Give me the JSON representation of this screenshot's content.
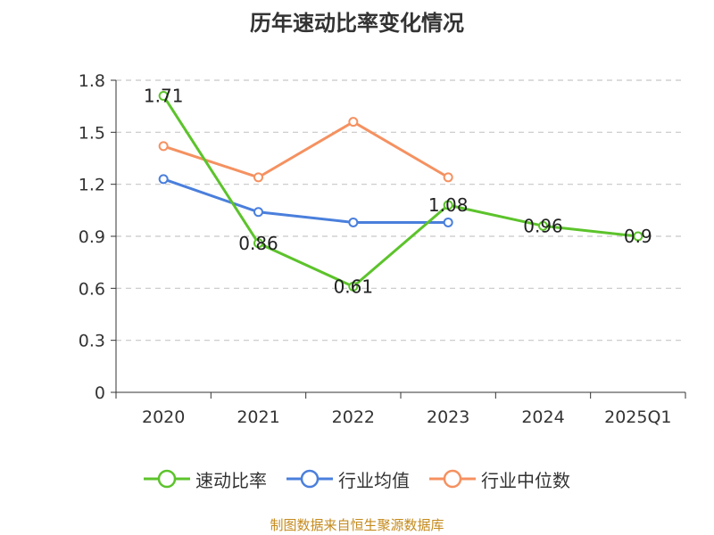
{
  "chart_data": {
    "type": "line",
    "title": "历年速动比率变化情况",
    "categories": [
      "2020",
      "2021",
      "2022",
      "2023",
      "2024",
      "2025Q1"
    ],
    "ylim": [
      0,
      1.8
    ],
    "yticks": [
      "0",
      "0.3",
      "0.6",
      "0.9",
      "1.2",
      "1.5",
      "1.8"
    ],
    "grid": true,
    "legend_position": "bottom",
    "series": [
      {
        "name": "速动比率",
        "color": "#5cc32b",
        "values": [
          1.71,
          0.86,
          0.61,
          1.08,
          0.96,
          0.9
        ],
        "labels": [
          "1.71",
          "0.86",
          "0.61",
          "1.08",
          "0.96",
          "0.9"
        ]
      },
      {
        "name": "行业均值",
        "color": "#4a7fdc",
        "values": [
          1.23,
          1.04,
          0.98,
          0.98,
          null,
          null
        ]
      },
      {
        "name": "行业中位数",
        "color": "#f59160",
        "values": [
          1.42,
          1.24,
          1.56,
          1.24,
          null,
          null
        ]
      }
    ]
  },
  "source": "制图数据来自恒生聚源数据库"
}
